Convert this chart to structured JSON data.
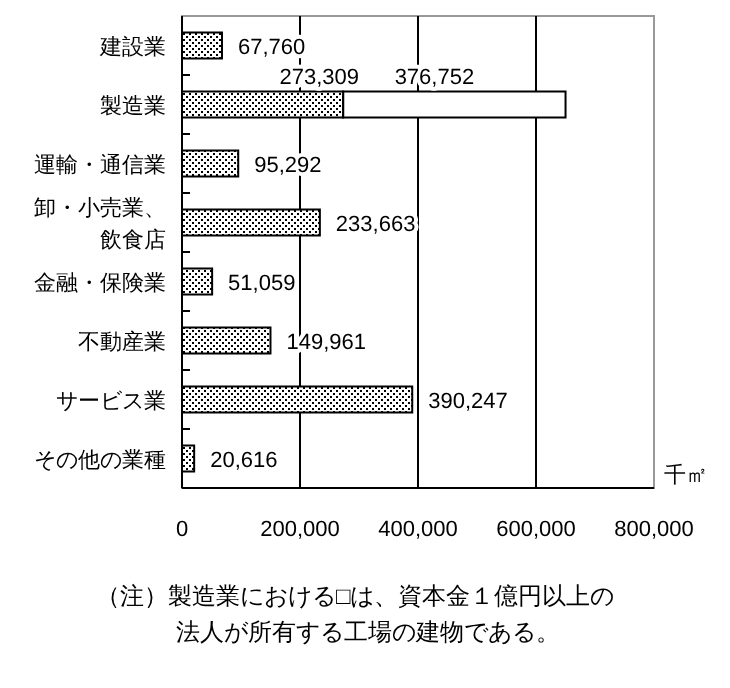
{
  "chart_data": {
    "type": "bar",
    "orientation": "horizontal",
    "stacked": true,
    "categories": [
      "建設業",
      "製造業",
      "運輸・通信業",
      "卸・小売業、飲食店",
      "金融・保険業",
      "不動産業",
      "サービス業",
      "その他の業種"
    ],
    "series": [
      {
        "color": "#000000",
        "values": [
          67760,
          273309,
          95292,
          233663,
          51059,
          149961,
          390247,
          20616
        ],
        "value_labels": [
          "67,760",
          "273,309",
          "95,292",
          "233,663",
          "51,059",
          "149,961",
          "390,247",
          "20,616"
        ]
      },
      {
        "color": "#ffffff",
        "values": [
          null,
          376752,
          null,
          null,
          null,
          null,
          null,
          null
        ],
        "value_labels": [
          null,
          "376,752",
          null,
          null,
          null,
          null,
          null,
          null
        ]
      }
    ],
    "xlim": [
      0,
      800000
    ],
    "xticks": [
      0,
      {
        "value": 200000,
        "label": "200,000"
      },
      {
        "value": 400000,
        "label": "400,000"
      },
      {
        "value": 600000,
        "label": "600,000"
      },
      {
        "value": 800000,
        "label": "800,000"
      }
    ],
    "xlabel": "千㎡",
    "grid": "x",
    "annotations": [
      "（注）製造業における□は、資本金１億円以上の法人が所有する工場の建物である。"
    ]
  }
}
